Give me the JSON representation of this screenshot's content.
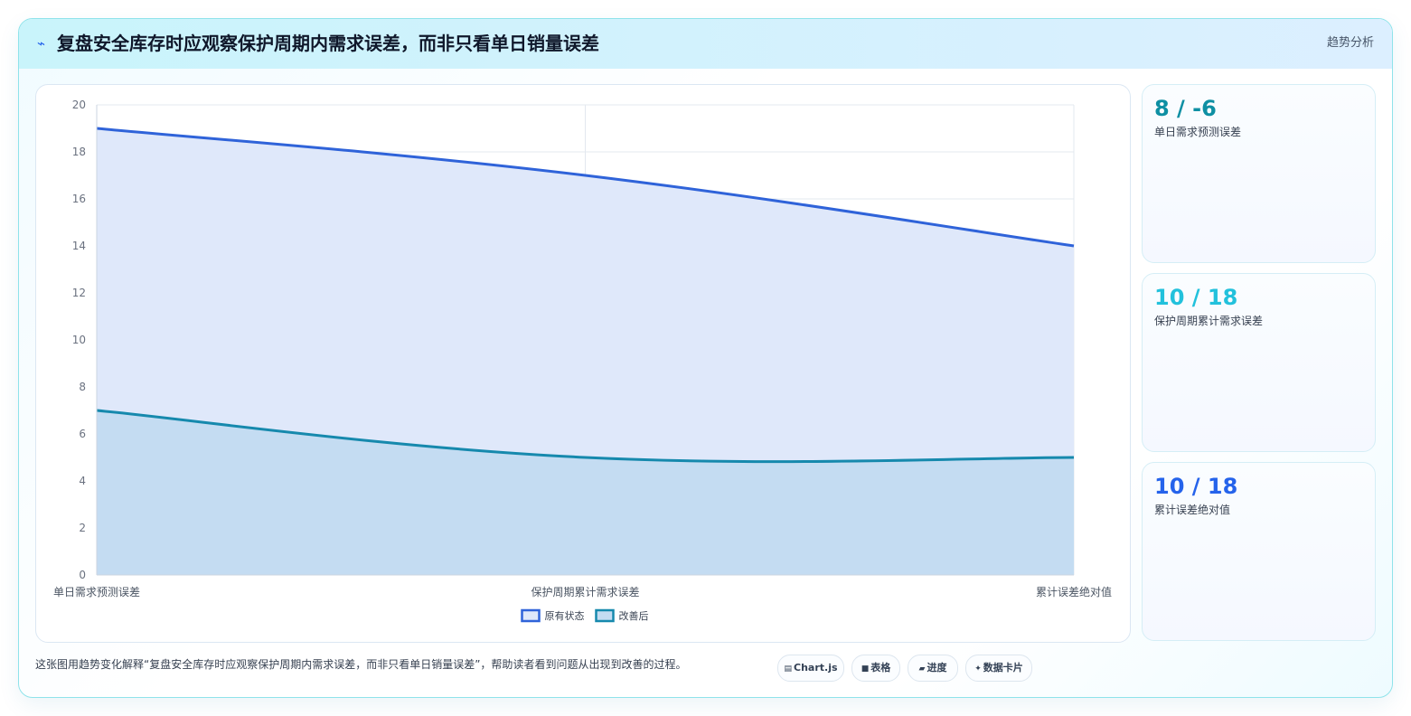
{
  "header": {
    "icon": "lightning-icon",
    "title": "复盘安全库存时应观察保护周期内需求误差，而非只看单日销量误差",
    "tag": "趋势分析"
  },
  "chart_data": {
    "type": "area",
    "categories": [
      "单日需求预测误差",
      "保护周期累计需求误差",
      "累计误差绝对值"
    ],
    "series": [
      {
        "name": "原有状态",
        "values": [
          19,
          17,
          14
        ],
        "color": "#2f63d9",
        "fill": "#dfe8fa"
      },
      {
        "name": "改善后",
        "values": [
          7,
          5,
          5
        ],
        "color": "#1689ad",
        "fill": "#c4dcf2"
      }
    ],
    "ylim": [
      0,
      20
    ],
    "yticks": [
      "0",
      "2",
      "4",
      "6",
      "8",
      "10",
      "12",
      "14",
      "16",
      "18",
      "20"
    ],
    "grid": true,
    "legend": "bottom"
  },
  "kpis": [
    {
      "value": "8 / -6",
      "label": "单日需求预测误差",
      "color": "#0e8fa3"
    },
    {
      "value": "10 / 18",
      "label": "保护周期累计需求误差",
      "color": "#22c1dc"
    },
    {
      "value": "10 / 18",
      "label": "累计误差绝对值",
      "color": "#2563eb"
    }
  ],
  "footer": {
    "description": "这张图用趋势变化解释“复盘安全库存时应观察保护周期内需求误差，而非只看单日销量误差”，帮助读者看到问题从出现到改善的过程。",
    "chips": [
      {
        "icon": "chart-icon",
        "glyph": "▤",
        "label": "Chart.js"
      },
      {
        "icon": "table-icon",
        "glyph": "■",
        "label": "表格"
      },
      {
        "icon": "progress-icon",
        "glyph": "▰",
        "label": "进度"
      },
      {
        "icon": "sparkle-icon",
        "glyph": "✦",
        "label": "数据卡片"
      }
    ]
  }
}
